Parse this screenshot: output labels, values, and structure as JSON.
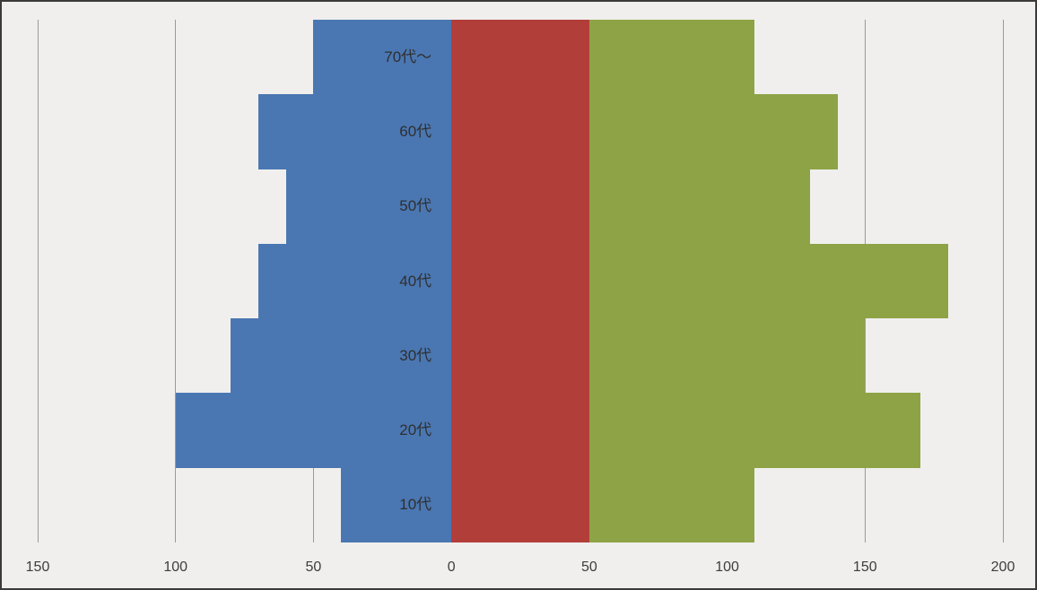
{
  "chart_data": {
    "type": "bar",
    "subtype": "horizontal-population-pyramid",
    "title": "",
    "legend": "none",
    "grid": true,
    "categories": [
      "70代～",
      "60代",
      "50代",
      "40代",
      "30代",
      "20代",
      "10代"
    ],
    "series": [
      {
        "name": "left-blue-series",
        "color": "#4a77b2",
        "side": "left",
        "values": [
          50,
          70,
          60,
          70,
          80,
          100,
          40
        ]
      },
      {
        "name": "middle-red-series",
        "color": "#b23e3a",
        "side": "right",
        "values": [
          50,
          50,
          50,
          50,
          50,
          50,
          50
        ]
      },
      {
        "name": "right-green-series",
        "color": "#8da345",
        "side": "right-stacked",
        "values": [
          60,
          90,
          80,
          130,
          100,
          120,
          60
        ]
      }
    ],
    "x_axis": {
      "range": [
        -150,
        200
      ],
      "ticks": [
        {
          "value": -150,
          "label": "150"
        },
        {
          "value": -100,
          "label": "100"
        },
        {
          "value": -50,
          "label": "50"
        },
        {
          "value": 0,
          "label": "0"
        },
        {
          "value": 50,
          "label": "50"
        },
        {
          "value": 100,
          "label": "100"
        },
        {
          "value": 150,
          "label": "150"
        },
        {
          "value": 200,
          "label": "200"
        }
      ]
    },
    "colors": {
      "background": "#f0efed",
      "gridline": "#9a9a9a",
      "category_text": "#2f2f2f",
      "tick_text": "#3d3d3d"
    }
  }
}
